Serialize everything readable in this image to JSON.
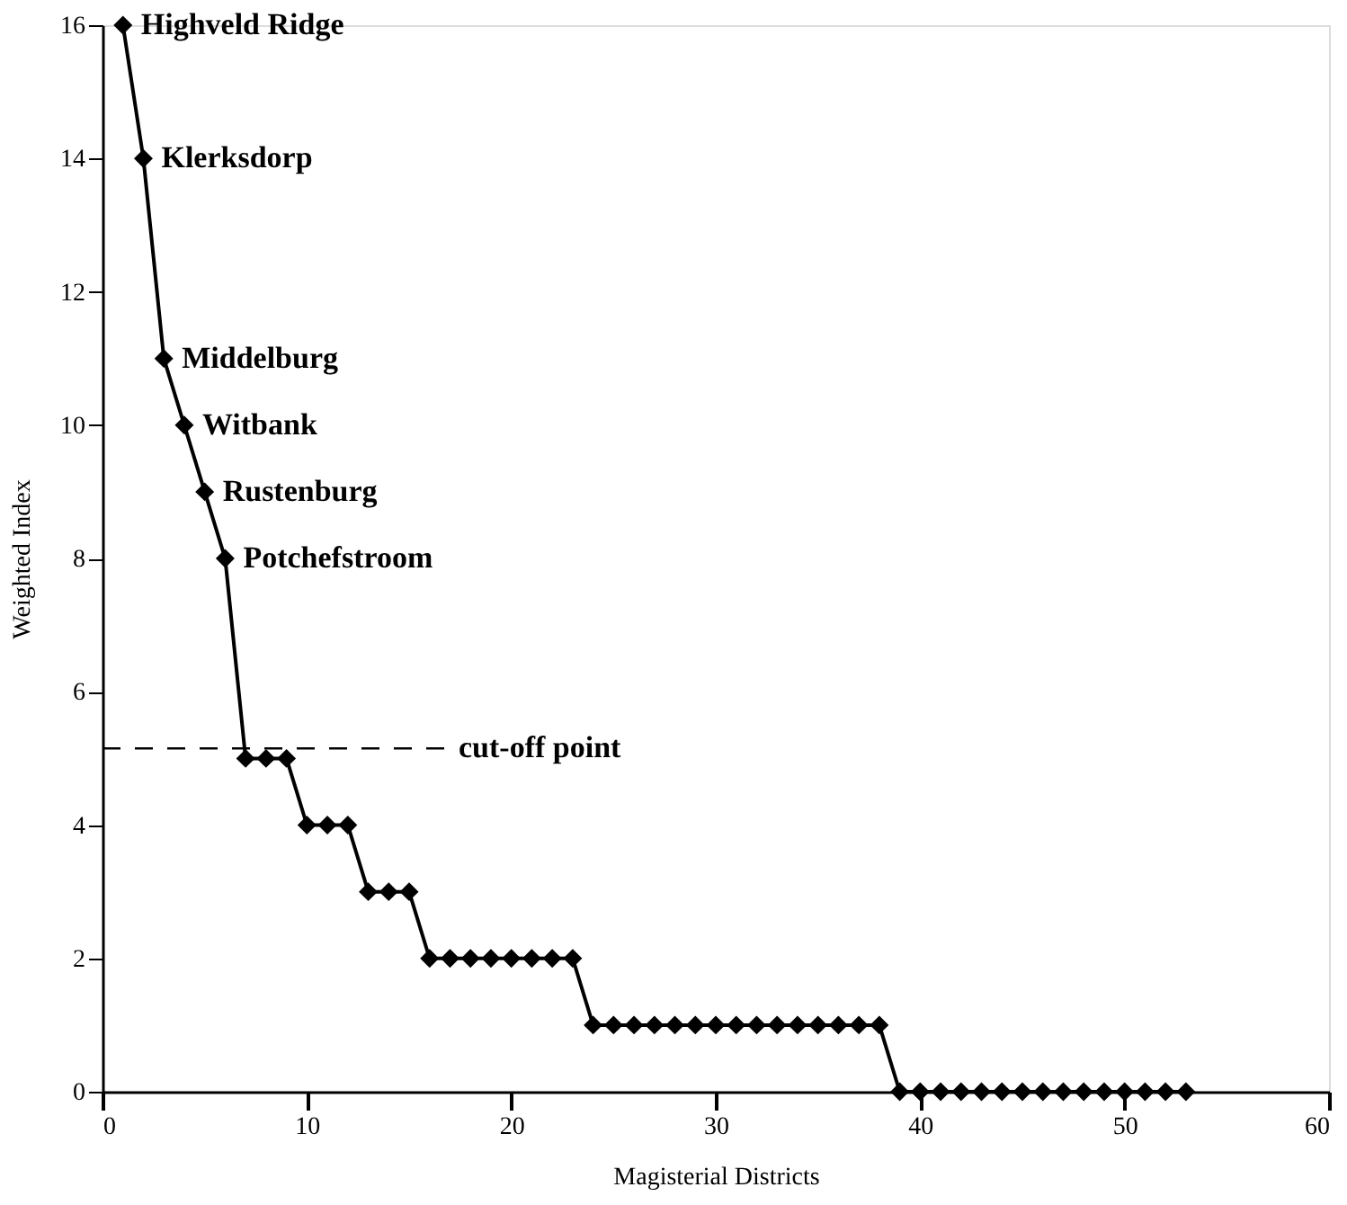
{
  "chart_data": {
    "type": "line",
    "xlabel": "Magisterial Districts",
    "ylabel": "Weighted Index",
    "x": [
      1,
      2,
      3,
      4,
      5,
      6,
      7,
      8,
      9,
      10,
      11,
      12,
      13,
      14,
      15,
      16,
      17,
      18,
      19,
      20,
      21,
      22,
      23,
      24,
      25,
      26,
      27,
      28,
      29,
      30,
      31,
      32,
      33,
      34,
      35,
      36,
      37,
      38,
      39,
      40,
      41,
      42,
      43,
      44,
      45,
      46,
      47,
      48,
      49,
      50,
      51,
      52,
      53
    ],
    "series": [
      {
        "color": "#000000",
        "values": [
          16,
          14,
          11,
          10,
          9,
          8,
          5,
          5,
          5,
          4,
          4,
          4,
          3,
          3,
          3,
          2,
          2,
          2,
          2,
          2,
          2,
          2,
          2,
          1,
          1,
          1,
          1,
          1,
          1,
          1,
          1,
          1,
          1,
          1,
          1,
          1,
          1,
          1,
          0,
          0,
          0,
          0,
          0,
          0,
          0,
          0,
          0,
          0,
          0,
          0,
          0,
          0,
          0
        ]
      }
    ],
    "xlim": [
      0,
      60
    ],
    "xticks": [
      0,
      10,
      20,
      30,
      40,
      50,
      60
    ],
    "ylim": [
      0,
      16
    ],
    "yticks": [
      0,
      2,
      4,
      6,
      8,
      10,
      12,
      14,
      16
    ],
    "marker": "diamond",
    "line_style": "solid",
    "grid": false,
    "ref_lines": [
      {
        "axis": "y",
        "value": 5.15,
        "label": "cut-off point",
        "line_style": "dashed",
        "color": "#000000"
      }
    ],
    "annotations": [
      {
        "text": "Highveld Ridge",
        "x": 1,
        "y": 16
      },
      {
        "text": "Klerksdorp",
        "x": 2,
        "y": 14
      },
      {
        "text": "Middelburg",
        "x": 3,
        "y": 11
      },
      {
        "text": "Witbank",
        "x": 4,
        "y": 10
      },
      {
        "text": "Rustenburg",
        "x": 5,
        "y": 9
      },
      {
        "text": "Potchefstroom",
        "x": 6,
        "y": 8
      }
    ]
  }
}
